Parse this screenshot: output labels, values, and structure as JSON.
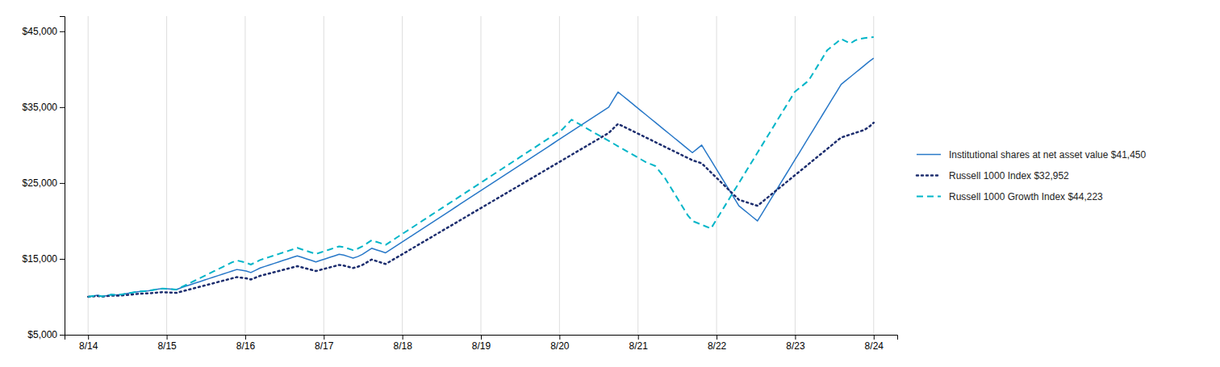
{
  "chart_data": {
    "type": "line",
    "xlim": [
      -0.3,
      10.3
    ],
    "xticks": [
      {
        "value": 0,
        "label": "8/14"
      },
      {
        "value": 1,
        "label": "8/15"
      },
      {
        "value": 2,
        "label": "8/16"
      },
      {
        "value": 3,
        "label": "8/17"
      },
      {
        "value": 4,
        "label": "8/18"
      },
      {
        "value": 5,
        "label": "8/19"
      },
      {
        "value": 6,
        "label": "8/20"
      },
      {
        "value": 7,
        "label": "8/21"
      },
      {
        "value": 8,
        "label": "8/22"
      },
      {
        "value": 9,
        "label": "8/23"
      },
      {
        "value": 10,
        "label": "8/24"
      }
    ],
    "ylim": [
      5000,
      47000
    ],
    "yticks": [
      {
        "value": 5000,
        "label": "$5,000"
      },
      {
        "value": 15000,
        "label": "$15,000"
      },
      {
        "value": 25000,
        "label": "$25,000"
      },
      {
        "value": 35000,
        "label": "$35,000"
      },
      {
        "value": 45000,
        "label": "$45,000"
      }
    ],
    "grid": true,
    "legend": "right",
    "series": [
      {
        "name": "Institutional shares at net asset value $41,450",
        "color": "#2878c8",
        "line_style": "solid",
        "values": [
          10000,
          10100,
          10200,
          10050,
          10150,
          10300,
          10250,
          10300,
          10400,
          10500,
          10600,
          10700,
          10750,
          10800,
          10900,
          11000,
          11100,
          11050,
          11000,
          10950,
          11200,
          11400,
          11600,
          11800,
          12000,
          12200,
          12400,
          12600,
          12800,
          13000,
          13200,
          13400,
          13600,
          13500,
          13400,
          13200,
          13500,
          13800,
          14000,
          14200,
          14400,
          14600,
          14800,
          15000,
          15200,
          15400,
          15200,
          15000,
          14800,
          14600,
          14800,
          15000,
          15200,
          15400,
          15600,
          15500,
          15300,
          15100,
          15300,
          15600,
          16000,
          16400,
          16200,
          16000,
          15800,
          16200,
          16600,
          17000,
          17400,
          17800,
          18200,
          18600,
          19000,
          19400,
          19800,
          20200,
          20600,
          21000,
          21400,
          21800,
          22200,
          22600,
          23000,
          23400,
          23800,
          24200,
          24600,
          25000,
          25400,
          25800,
          26200,
          26600,
          27000,
          27400,
          27800,
          28200,
          28600,
          29000,
          29400,
          29800,
          30200,
          30600,
          31000,
          31400,
          31800,
          32200,
          32600,
          33000,
          33400,
          33800,
          34200,
          34600,
          35000,
          36000,
          37000,
          36500,
          36000,
          35500,
          35000,
          34500,
          34000,
          33500,
          33000,
          32500,
          32000,
          31500,
          31000,
          30500,
          30000,
          29500,
          29000,
          29500,
          30000,
          29000,
          28000,
          27000,
          26000,
          25000,
          24000,
          23000,
          22000,
          21500,
          21000,
          20500,
          20000,
          21000,
          22000,
          23000,
          24000,
          25000,
          26000,
          27000,
          28000,
          29000,
          30000,
          31000,
          32000,
          33000,
          34000,
          35000,
          36000,
          37000,
          38000,
          38500,
          39000,
          39500,
          40000,
          40500,
          41000,
          41450
        ]
      },
      {
        "name": "Russell 1000 Index $32,952",
        "color": "#1c2d6e",
        "line_style": "dotted",
        "values": [
          10000,
          10050,
          10100,
          10020,
          10080,
          10160,
          10140,
          10160,
          10220,
          10280,
          10340,
          10400,
          10430,
          10460,
          10510,
          10560,
          10610,
          10580,
          10550,
          10520,
          10680,
          10840,
          11000,
          11160,
          11320,
          11480,
          11640,
          11800,
          11960,
          12120,
          12280,
          12440,
          12600,
          12520,
          12440,
          12280,
          12520,
          12760,
          12920,
          13080,
          13240,
          13400,
          13560,
          13720,
          13880,
          14040,
          13880,
          13720,
          13560,
          13400,
          13560,
          13720,
          13880,
          14040,
          14200,
          14120,
          13960,
          13800,
          13960,
          14200,
          14560,
          14920,
          14720,
          14520,
          14320,
          14680,
          15040,
          15400,
          15760,
          16120,
          16480,
          16840,
          17200,
          17560,
          17920,
          18280,
          18640,
          19000,
          19360,
          19720,
          20080,
          20440,
          20800,
          21160,
          21520,
          21880,
          22240,
          22600,
          22960,
          23320,
          23680,
          24040,
          24400,
          24760,
          25120,
          25480,
          25840,
          26200,
          26560,
          26920,
          27280,
          27640,
          28000,
          28360,
          28720,
          29080,
          29440,
          29800,
          30160,
          30520,
          30880,
          31240,
          31600,
          32200,
          32800,
          32500,
          32200,
          31900,
          31600,
          31300,
          31000,
          30700,
          30400,
          30100,
          29800,
          29500,
          29200,
          28900,
          28600,
          28300,
          28000,
          27800,
          27600,
          27000,
          26400,
          25800,
          25200,
          24600,
          24000,
          23400,
          22800,
          22600,
          22400,
          22200,
          22000,
          22500,
          23000,
          23500,
          24000,
          24500,
          25000,
          25500,
          26000,
          26500,
          27000,
          27500,
          28000,
          28500,
          29000,
          29500,
          30000,
          30500,
          31000,
          31200,
          31400,
          31600,
          31800,
          32000,
          32400,
          32952
        ]
      },
      {
        "name": "Russell 1000 Growth Index $44,223",
        "color": "#00b5c8",
        "line_style": "dashed",
        "values": [
          10000,
          10100,
          10200,
          10050,
          10150,
          10300,
          10250,
          10300,
          10400,
          10500,
          10600,
          10700,
          10750,
          10800,
          10900,
          11000,
          11100,
          11050,
          11000,
          10950,
          11250,
          11550,
          11850,
          12150,
          12450,
          12750,
          13050,
          13350,
          13650,
          13950,
          14250,
          14550,
          14800,
          14650,
          14500,
          14250,
          14550,
          14850,
          15050,
          15250,
          15450,
          15650,
          15850,
          16050,
          16250,
          16450,
          16250,
          16050,
          15850,
          15650,
          15850,
          16050,
          16250,
          16450,
          16650,
          16550,
          16350,
          16150,
          16350,
          16650,
          17050,
          17450,
          17250,
          17050,
          16850,
          17250,
          17650,
          18050,
          18450,
          18850,
          19250,
          19650,
          20050,
          20450,
          20850,
          21250,
          21650,
          22050,
          22450,
          22850,
          23250,
          23650,
          24050,
          24450,
          24850,
          25250,
          25650,
          26050,
          26450,
          26850,
          27250,
          27650,
          28050,
          28450,
          28850,
          29250,
          29650,
          30050,
          30450,
          30850,
          31250,
          31650,
          32050,
          32700,
          33350,
          33000,
          32650,
          32300,
          31950,
          31600,
          31250,
          30900,
          30550,
          30200,
          29850,
          29500,
          29150,
          28800,
          28450,
          28100,
          27750,
          27500,
          27250,
          26500,
          25750,
          24750,
          23750,
          22750,
          21750,
          20750,
          20000,
          19750,
          19500,
          19250,
          19000,
          20000,
          21000,
          22000,
          23000,
          24000,
          25000,
          26000,
          27000,
          28000,
          29000,
          30000,
          31000,
          32000,
          33000,
          34000,
          35000,
          36000,
          37000,
          37500,
          38000,
          38500,
          39500,
          40500,
          41500,
          42500,
          43000,
          43500,
          44000,
          43700,
          43400,
          43800,
          44000,
          44100,
          44200,
          44223
        ]
      }
    ]
  }
}
